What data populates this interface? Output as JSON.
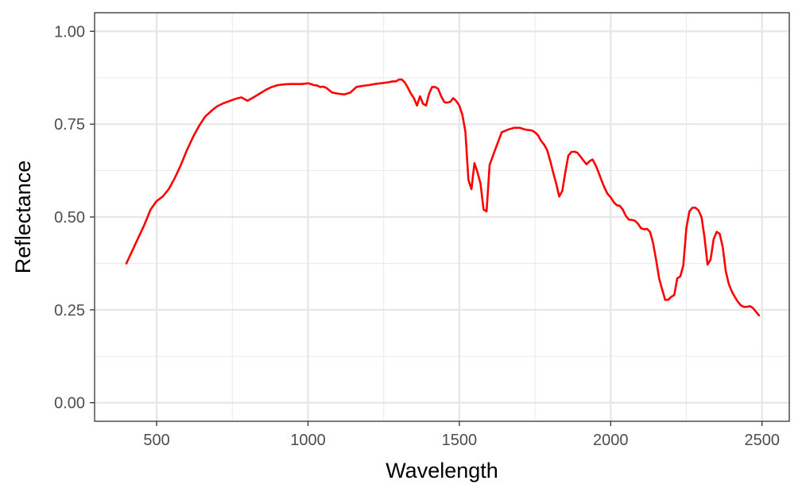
{
  "chart_data": {
    "type": "line",
    "title": "",
    "xlabel": "Wavelength",
    "ylabel": "Reflectance",
    "xlim": [
      295,
      2590
    ],
    "ylim": [
      -0.05,
      1.05
    ],
    "x_major_ticks": [
      500,
      1000,
      1500,
      2000,
      2500
    ],
    "x_tick_labels": [
      "500",
      "1000",
      "1500",
      "2000",
      "2500"
    ],
    "x_minor_ticks": [
      750,
      1250,
      1750,
      2250
    ],
    "y_major_ticks": [
      0,
      0.25,
      0.5,
      0.75,
      1
    ],
    "y_tick_labels": [
      "0.00",
      "0.25",
      "0.50",
      "0.75",
      "1.00"
    ],
    "y_minor_ticks": [
      0.125,
      0.375,
      0.625,
      0.875
    ],
    "grid": true,
    "line_color": "#ff0000",
    "series": [
      {
        "x": [
          400,
          420,
          440,
          460,
          480,
          500,
          520,
          540,
          560,
          580,
          600,
          620,
          640,
          660,
          680,
          690,
          700,
          720,
          740,
          760,
          780,
          800,
          820,
          840,
          860,
          880,
          900,
          920,
          940,
          960,
          980,
          1000,
          1010,
          1020,
          1030,
          1040,
          1050,
          1060,
          1080,
          1100,
          1120,
          1140,
          1160,
          1180,
          1200,
          1220,
          1240,
          1260,
          1280,
          1290,
          1300,
          1310,
          1320,
          1330,
          1340,
          1350,
          1360,
          1370,
          1380,
          1390,
          1400,
          1410,
          1420,
          1430,
          1440,
          1450,
          1455,
          1460,
          1470,
          1480,
          1490,
          1500,
          1510,
          1520,
          1530,
          1540,
          1550,
          1560,
          1570,
          1580,
          1590,
          1600,
          1620,
          1640,
          1660,
          1680,
          1700,
          1720,
          1740,
          1750,
          1760,
          1770,
          1780,
          1790,
          1800,
          1810,
          1820,
          1830,
          1840,
          1850,
          1860,
          1870,
          1880,
          1890,
          1900,
          1910,
          1920,
          1930,
          1940,
          1950,
          1960,
          1970,
          1980,
          1990,
          2000,
          2010,
          2020,
          2030,
          2040,
          2050,
          2060,
          2070,
          2080,
          2090,
          2100,
          2110,
          2120,
          2130,
          2140,
          2150,
          2160,
          2170,
          2180,
          2190,
          2200,
          2210,
          2220,
          2230,
          2240,
          2250,
          2260,
          2270,
          2280,
          2290,
          2300,
          2310,
          2320,
          2330,
          2340,
          2350,
          2360,
          2370,
          2380,
          2390,
          2400,
          2410,
          2420,
          2430,
          2440,
          2450,
          2460,
          2470,
          2480,
          2490
        ],
        "y": [
          0.375,
          0.41,
          0.445,
          0.48,
          0.52,
          0.543,
          0.555,
          0.575,
          0.605,
          0.64,
          0.68,
          0.715,
          0.745,
          0.77,
          0.785,
          0.792,
          0.798,
          0.806,
          0.812,
          0.818,
          0.822,
          0.813,
          0.822,
          0.832,
          0.842,
          0.85,
          0.855,
          0.857,
          0.858,
          0.858,
          0.858,
          0.86,
          0.858,
          0.855,
          0.854,
          0.85,
          0.851,
          0.848,
          0.835,
          0.832,
          0.83,
          0.835,
          0.85,
          0.853,
          0.855,
          0.858,
          0.86,
          0.862,
          0.865,
          0.865,
          0.87,
          0.87,
          0.862,
          0.848,
          0.832,
          0.82,
          0.8,
          0.825,
          0.805,
          0.8,
          0.832,
          0.85,
          0.85,
          0.845,
          0.825,
          0.81,
          0.808,
          0.808,
          0.81,
          0.82,
          0.812,
          0.8,
          0.775,
          0.73,
          0.6,
          0.575,
          0.645,
          0.62,
          0.59,
          0.52,
          0.515,
          0.64,
          0.685,
          0.728,
          0.735,
          0.74,
          0.74,
          0.735,
          0.733,
          0.728,
          0.72,
          0.705,
          0.695,
          0.68,
          0.652,
          0.62,
          0.59,
          0.555,
          0.57,
          0.62,
          0.665,
          0.675,
          0.676,
          0.673,
          0.663,
          0.652,
          0.642,
          0.65,
          0.655,
          0.64,
          0.62,
          0.598,
          0.578,
          0.562,
          0.553,
          0.54,
          0.532,
          0.53,
          0.52,
          0.503,
          0.493,
          0.492,
          0.49,
          0.482,
          0.47,
          0.467,
          0.468,
          0.46,
          0.43,
          0.385,
          0.335,
          0.305,
          0.277,
          0.277,
          0.285,
          0.29,
          0.335,
          0.34,
          0.37,
          0.47,
          0.515,
          0.525,
          0.525,
          0.518,
          0.5,
          0.445,
          0.372,
          0.385,
          0.44,
          0.46,
          0.455,
          0.42,
          0.355,
          0.32,
          0.3,
          0.285,
          0.272,
          0.262,
          0.258,
          0.258,
          0.26,
          0.255,
          0.245,
          0.235
        ]
      }
    ]
  }
}
